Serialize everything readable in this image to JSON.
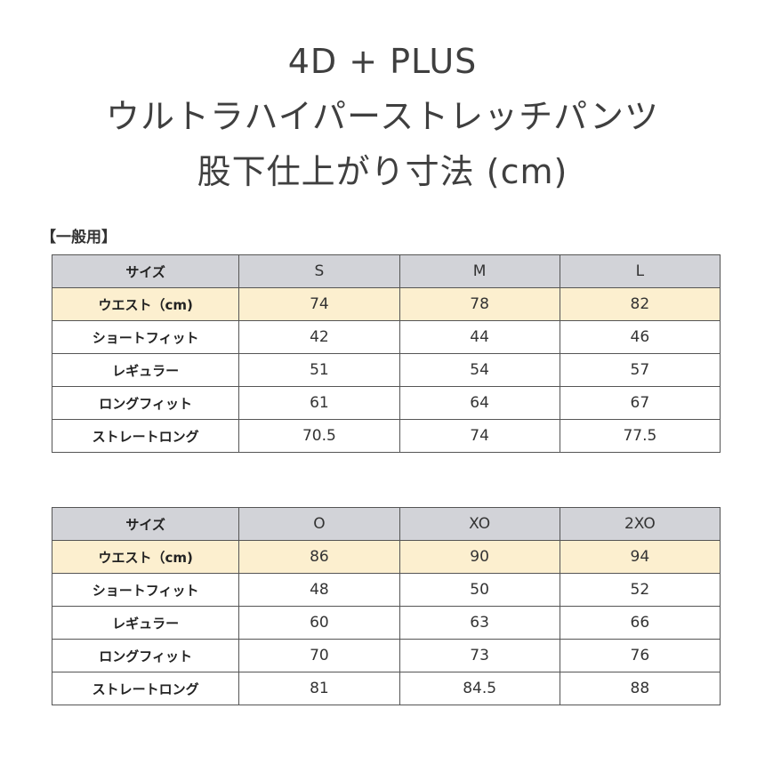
{
  "title": {
    "line1": "4D + PLUS",
    "line2": "ウルトラハイパーストレッチパンツ",
    "line3": "股下仕上がり寸法 (cm)"
  },
  "category_label": "【一般用】",
  "tables": [
    {
      "header": [
        "サイズ",
        "S",
        "M",
        "L"
      ],
      "rows": [
        {
          "label": "ウエスト（cm)",
          "values": [
            "74",
            "78",
            "82"
          ]
        },
        {
          "label": "ショートフィット",
          "values": [
            "42",
            "44",
            "46"
          ]
        },
        {
          "label": "レギュラー",
          "values": [
            "51",
            "54",
            "57"
          ]
        },
        {
          "label": "ロングフィット",
          "values": [
            "61",
            "64",
            "67"
          ]
        },
        {
          "label": "ストレートロング",
          "values": [
            "70.5",
            "74",
            "77.5"
          ]
        }
      ]
    },
    {
      "header": [
        "サイズ",
        "O",
        "XO",
        "2XO"
      ],
      "rows": [
        {
          "label": "ウエスト（cm)",
          "values": [
            "86",
            "90",
            "94"
          ]
        },
        {
          "label": "ショートフィット",
          "values": [
            "48",
            "50",
            "52"
          ]
        },
        {
          "label": "レギュラー",
          "values": [
            "60",
            "63",
            "66"
          ]
        },
        {
          "label": "ロングフィット",
          "values": [
            "70",
            "73",
            "76"
          ]
        },
        {
          "label": "ストレートロング",
          "values": [
            "81",
            "84.5",
            "88"
          ]
        }
      ]
    }
  ],
  "colors": {
    "header_bg": "#d2d3d8",
    "waist_bg": "#fcefcf",
    "border": "#555555",
    "text": "#333333"
  }
}
